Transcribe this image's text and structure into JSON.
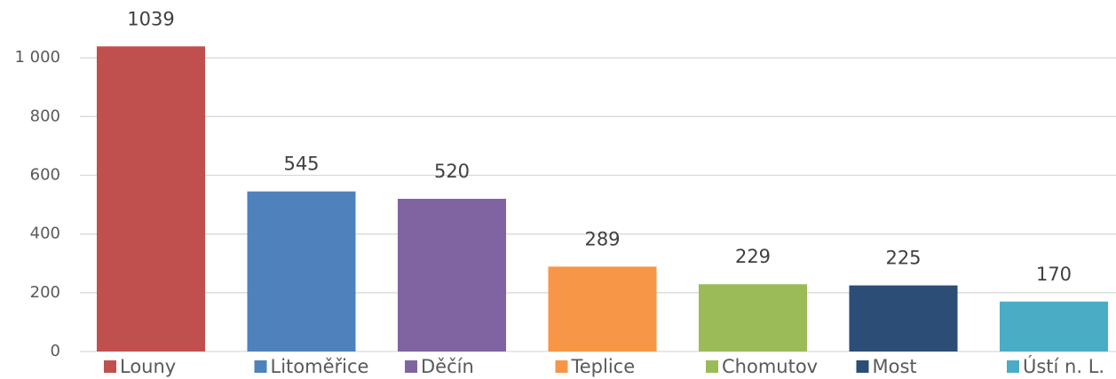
{
  "chart_data": {
    "type": "bar",
    "categories": [
      "Louny",
      "Litoměřice",
      "Děčín",
      "Teplice",
      "Chomutov",
      "Most",
      "Ústí n. L."
    ],
    "values": [
      1039,
      545,
      520,
      289,
      229,
      225,
      170
    ],
    "colors": [
      "#c0504d",
      "#4f81bd",
      "#8064a2",
      "#f79646",
      "#9bbb59",
      "#2c4d75",
      "#4bacc6"
    ],
    "ylim": [
      0,
      1200
    ],
    "yticks": [
      0,
      200,
      400,
      600,
      800,
      {
        "value": 1000,
        "label": "1 000"
      }
    ],
    "grid": true
  }
}
